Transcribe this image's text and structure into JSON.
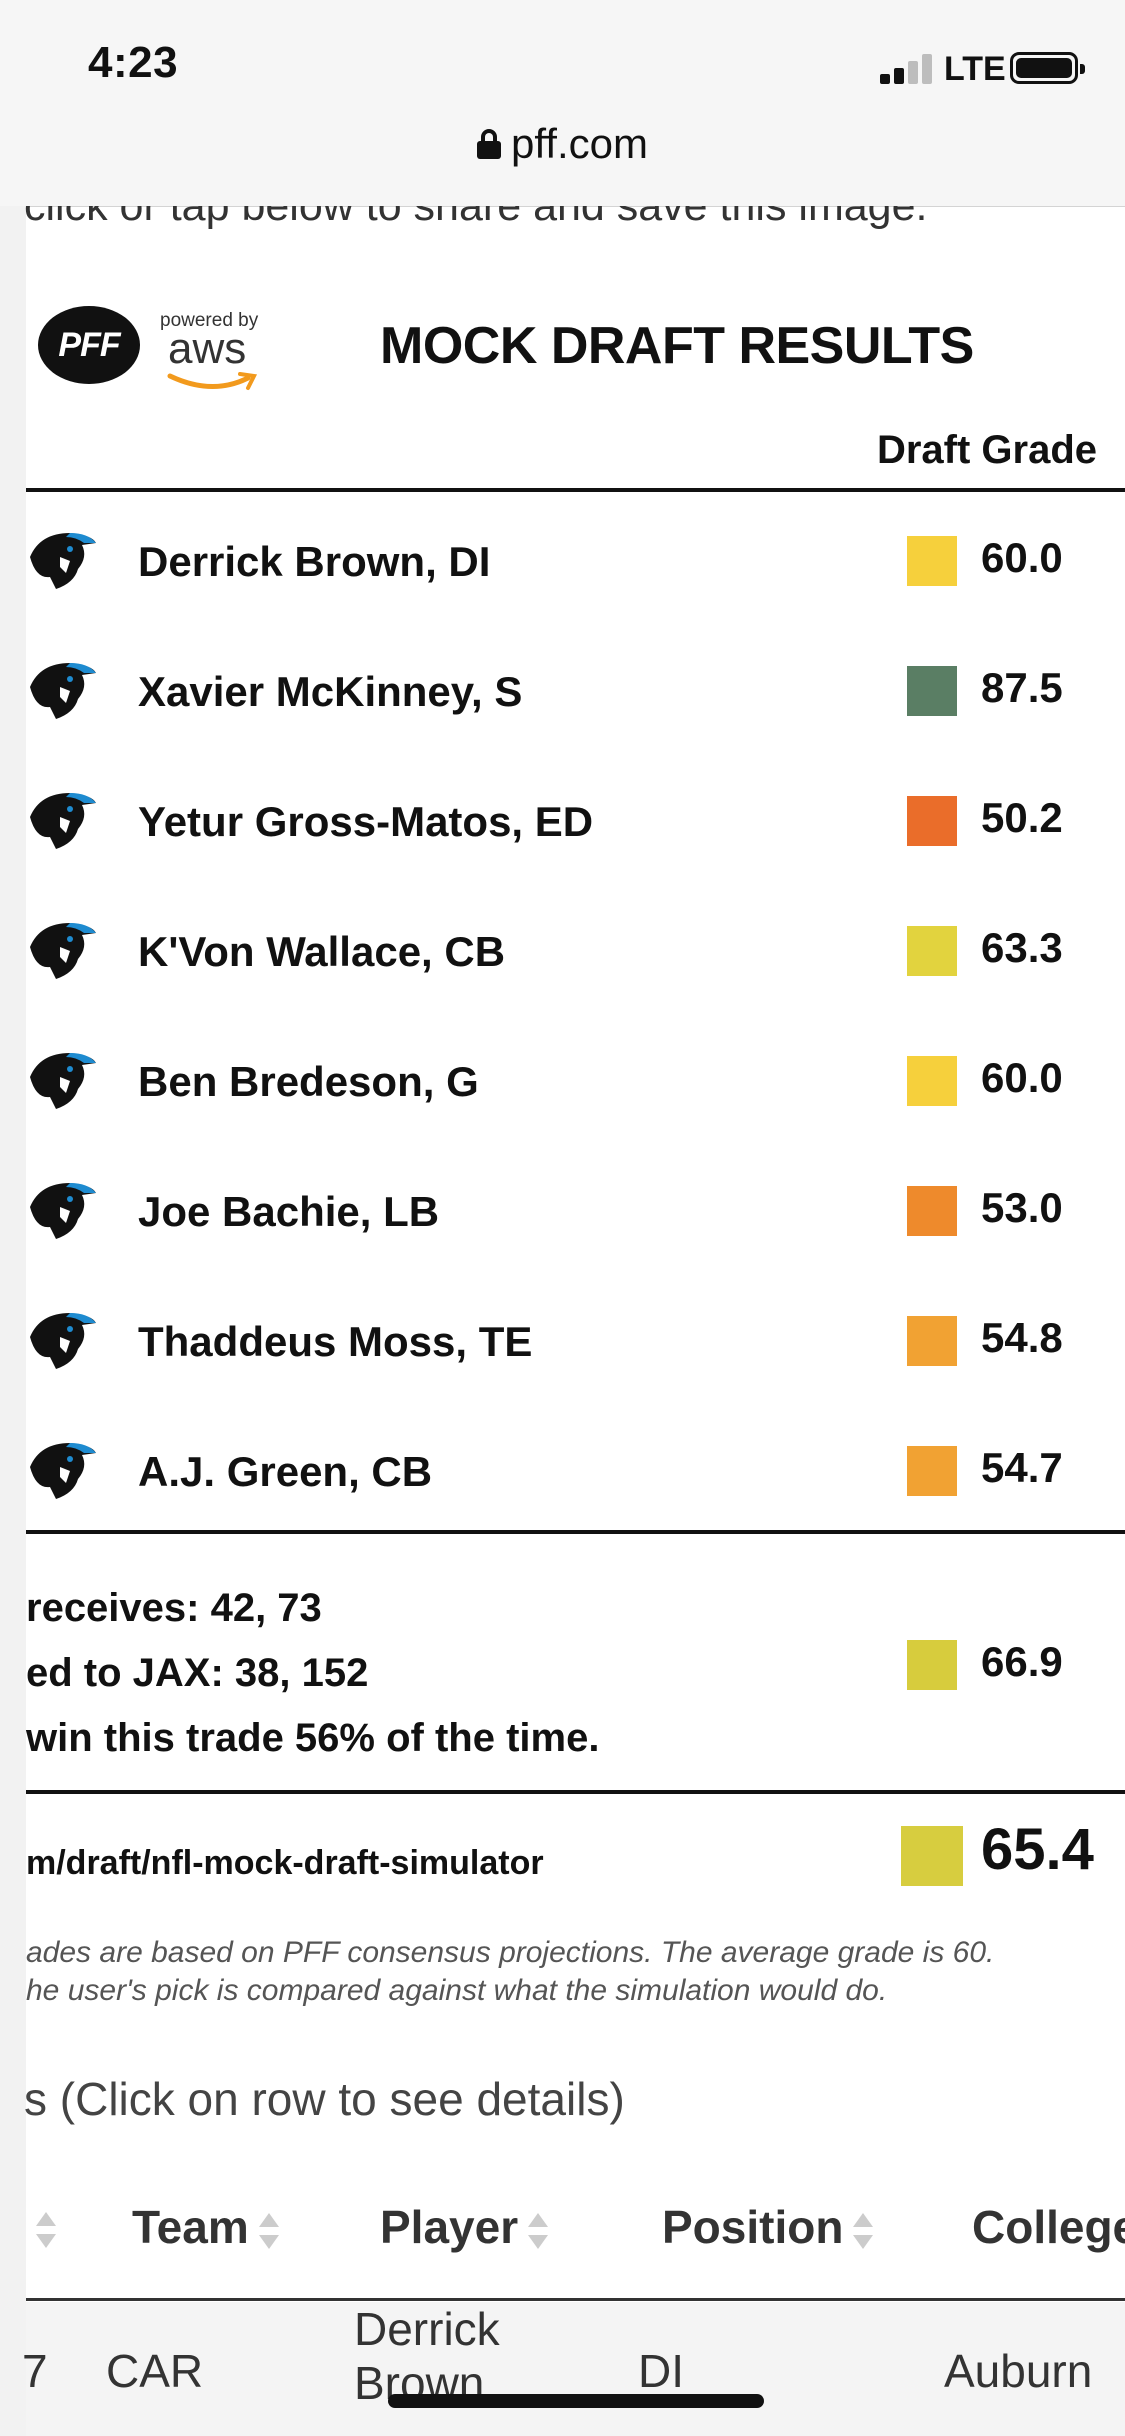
{
  "status_bar": {
    "time": "4:23",
    "network": "LTE"
  },
  "browser": {
    "url": "pff.com"
  },
  "page": {
    "share_text": "click or tap below to share and save this image.",
    "logo_text": "PFF",
    "powered_by": "powered by",
    "aws": "aws",
    "title": "MOCK DRAFT RESULTS",
    "grade_header": "Draft Grade",
    "picks": [
      {
        "player": "Derrick Brown, DI",
        "grade": "60.0",
        "color": "#f6d03c"
      },
      {
        "player": "Xavier McKinney, S",
        "grade": "87.5",
        "color": "#5a7e64"
      },
      {
        "player": "Yetur Gross-Matos, ED",
        "grade": "50.2",
        "color": "#ea6d2a"
      },
      {
        "player": "K'Von Wallace, CB",
        "grade": "63.3",
        "color": "#e2d33e"
      },
      {
        "player": "Ben Bredeson, G",
        "grade": "60.0",
        "color": "#f6d03c"
      },
      {
        "player": "Joe Bachie, LB",
        "grade": "53.0",
        "color": "#ee8a2c"
      },
      {
        "player": "Thaddeus Moss, TE",
        "grade": "54.8",
        "color": "#f1a233"
      },
      {
        "player": "A.J. Green, CB",
        "grade": "54.7",
        "color": "#f1a233"
      }
    ],
    "trade": {
      "line1": "receives: 42, 73",
      "line2": "ed to JAX: 38, 152",
      "line3": "win this trade 56% of the time.",
      "grade": "66.9",
      "color": "#d7cc3d"
    },
    "overall": {
      "link": "m/draft/nfl-mock-draft-simulator",
      "grade": "65.4",
      "color": "#d7cd3f"
    },
    "note_line1": "ades are based on PFF consensus projections. The average grade is 60.",
    "note_line2": "he user's pick is compared against what the simulation would do.",
    "details_text": "s (Click on row to see details)",
    "table": {
      "headers": [
        "Team",
        "Player",
        "Position",
        "College"
      ],
      "row": {
        "pick": "7",
        "team": "CAR",
        "player_line1": "Derrick",
        "player_line2": "Brown",
        "position": "DI",
        "college": "Auburn"
      }
    }
  }
}
